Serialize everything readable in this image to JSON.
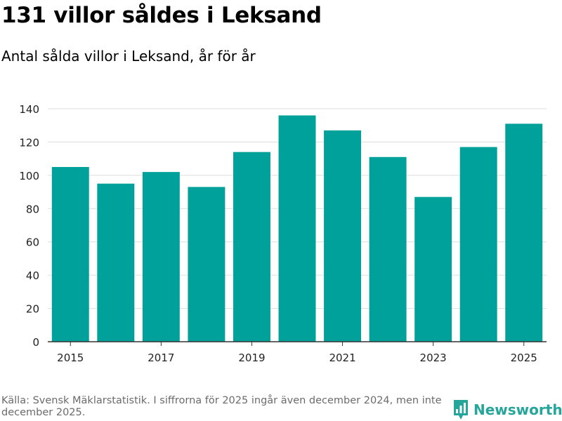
{
  "title": "131 villor såldes i Leksand",
  "subtitle": "Antal sålda villor i Leksand, år för år",
  "footer": "Källa: Svensk Mäklarstatistik. I siffrorna för 2025 ingår även december 2024, men inte december 2025.",
  "brand": {
    "name": "Newsworthy",
    "color": "#26a69a"
  },
  "colors": {
    "bar": "#00a19a",
    "grid": "#dddddd",
    "axis": "#333333",
    "text": "#222222"
  },
  "chart_data": {
    "type": "bar",
    "title": "Antal sålda villor i Leksand, år för år",
    "xlabel": "",
    "ylabel": "",
    "categories": [
      "2015",
      "2016",
      "2017",
      "2018",
      "2019",
      "2020",
      "2021",
      "2022",
      "2023",
      "2024",
      "2025"
    ],
    "values": [
      105,
      95,
      102,
      93,
      114,
      136,
      127,
      111,
      87,
      117,
      131
    ],
    "x_tick_labels": [
      "2015",
      "2017",
      "2019",
      "2021",
      "2023",
      "2025"
    ],
    "y_ticks": [
      0,
      20,
      40,
      60,
      80,
      100,
      120,
      140
    ],
    "ylim": [
      0,
      140
    ],
    "grid": true,
    "legend": "none"
  }
}
